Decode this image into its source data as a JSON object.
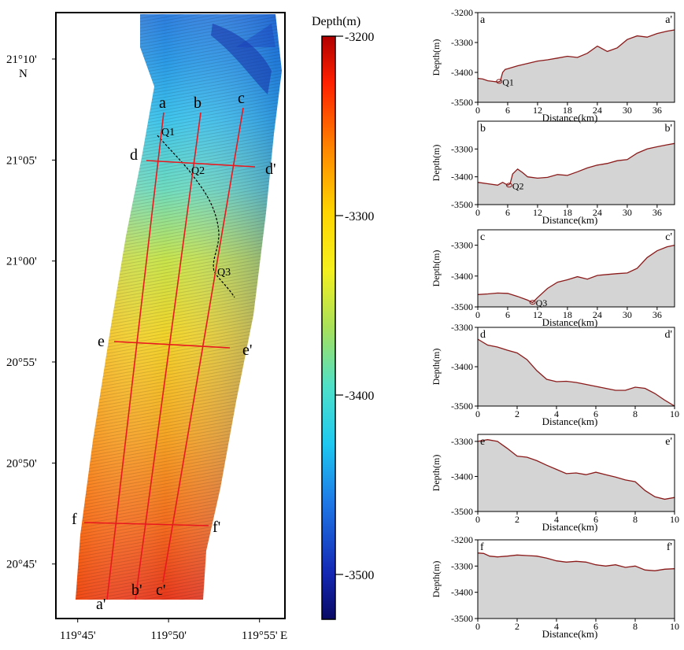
{
  "map": {
    "lat_ticks": [
      "21°10'",
      "21°05'",
      "21°00'",
      "20°55'",
      "20°50'",
      "20°45'"
    ],
    "lat_values": [
      21.1667,
      21.0833,
      21.0,
      20.9167,
      20.8333,
      20.75
    ],
    "lat_range": [
      20.705,
      21.205
    ],
    "lon_ticks": [
      "119°45'",
      "119°50'",
      "119°55'"
    ],
    "lon_values": [
      119.75,
      119.8333,
      119.9167
    ],
    "lon_range": [
      119.73,
      119.94
    ],
    "north_label": "N",
    "east_label": "E",
    "profile_lines": [
      {
        "start": "a",
        "end": "a'"
      },
      {
        "start": "b",
        "end": "b'"
      },
      {
        "start": "c",
        "end": "c'"
      },
      {
        "start": "d",
        "end": "d'"
      },
      {
        "start": "e",
        "end": "e'"
      },
      {
        "start": "f",
        "end": "f'"
      }
    ],
    "features": [
      "Q1",
      "Q2",
      "Q3"
    ],
    "colors": {
      "profile_line": "#e8191f",
      "feature_trace": "#000000"
    }
  },
  "colorbar": {
    "title": "Depth(m)",
    "ticks": [
      "-3200",
      "-3300",
      "-3400",
      "-3500"
    ],
    "tick_values": [
      -3200,
      -3300,
      -3400,
      -3500
    ],
    "range": [
      -3200,
      -3525
    ],
    "colors": [
      "#b00000",
      "#ff2000",
      "#ff8c00",
      "#ffd400",
      "#f5f01e",
      "#a8e05a",
      "#4fe0c8",
      "#1ec8f0",
      "#1e78e6",
      "#1428b4",
      "#0a0a64"
    ]
  },
  "chart_data": [
    {
      "type": "area",
      "start_label": "a",
      "end_label": "a'",
      "xlabel": "Distance(km)",
      "ylabel": "Depth(m)",
      "xlim": [
        0,
        39.5
      ],
      "ylim": [
        -3500,
        -3200
      ],
      "xticks": [
        0,
        6,
        12,
        18,
        24,
        30,
        36
      ],
      "yticks": [
        -3200,
        -3300,
        -3400,
        -3500
      ],
      "feature": {
        "label": "Q1",
        "x": 4.3,
        "y": -3430
      },
      "x": [
        0,
        1,
        2,
        3,
        4,
        4.5,
        5,
        5.5,
        6,
        8,
        10,
        12,
        14,
        16,
        18,
        20,
        22,
        24,
        26,
        28,
        30,
        32,
        34,
        36,
        38,
        39.5
      ],
      "y": [
        -3420,
        -3422,
        -3428,
        -3430,
        -3432,
        -3430,
        -3400,
        -3390,
        -3388,
        -3378,
        -3370,
        -3362,
        -3358,
        -3352,
        -3346,
        -3350,
        -3336,
        -3312,
        -3330,
        -3318,
        -3290,
        -3278,
        -3282,
        -3270,
        -3262,
        -3258
      ]
    },
    {
      "type": "area",
      "start_label": "b",
      "end_label": "b'",
      "xlabel": "Distance(km)",
      "ylabel": "Depth(m)",
      "xlim": [
        0,
        39.5
      ],
      "ylim": [
        -3500,
        -3200
      ],
      "xticks": [
        0,
        6,
        12,
        18,
        24,
        30,
        36
      ],
      "yticks": [
        -3300,
        -3400,
        -3500
      ],
      "feature": {
        "label": "Q2",
        "x": 6.3,
        "y": -3430
      },
      "x": [
        0,
        2,
        4,
        5,
        6,
        6.5,
        7,
        8,
        9,
        10,
        12,
        14,
        16,
        18,
        20,
        22,
        24,
        26,
        28,
        30,
        32,
        34,
        36,
        38,
        39.5
      ],
      "y": [
        -3420,
        -3425,
        -3430,
        -3420,
        -3430,
        -3425,
        -3390,
        -3372,
        -3385,
        -3400,
        -3405,
        -3402,
        -3392,
        -3395,
        -3382,
        -3368,
        -3358,
        -3352,
        -3342,
        -3338,
        -3315,
        -3300,
        -3292,
        -3285,
        -3280
      ]
    },
    {
      "type": "area",
      "start_label": "c",
      "end_label": "c'",
      "xlabel": "Distance(km)",
      "ylabel": "Depth(m)",
      "xlim": [
        0,
        39.5
      ],
      "ylim": [
        -3500,
        -3250
      ],
      "xticks": [
        0,
        6,
        12,
        18,
        24,
        30,
        36
      ],
      "yticks": [
        -3300,
        -3400,
        -3500
      ],
      "feature": {
        "label": "Q3",
        "x": 11,
        "y": -3485
      },
      "x": [
        0,
        2,
        4,
        6,
        8,
        10,
        11,
        12,
        14,
        16,
        18,
        20,
        22,
        24,
        26,
        28,
        30,
        32,
        34,
        36,
        38,
        39.5
      ],
      "y": [
        -3460,
        -3458,
        -3455,
        -3456,
        -3466,
        -3478,
        -3486,
        -3470,
        -3440,
        -3420,
        -3412,
        -3402,
        -3410,
        -3398,
        -3395,
        -3392,
        -3390,
        -3375,
        -3340,
        -3318,
        -3305,
        -3300
      ]
    },
    {
      "type": "area",
      "start_label": "d",
      "end_label": "d'",
      "xlabel": "Distance(km)",
      "ylabel": "Depth(m)",
      "xlim": [
        0,
        10
      ],
      "ylim": [
        -3500,
        -3300
      ],
      "xticks": [
        0,
        2,
        4,
        6,
        8,
        10
      ],
      "yticks": [
        -3300,
        -3400,
        -3500
      ],
      "x": [
        0,
        0.5,
        1,
        1.5,
        2,
        2.5,
        3,
        3.5,
        4,
        4.5,
        5,
        5.5,
        6,
        6.5,
        7,
        7.5,
        8,
        8.5,
        9,
        9.5,
        10
      ],
      "y": [
        -3330,
        -3345,
        -3350,
        -3358,
        -3365,
        -3382,
        -3410,
        -3432,
        -3438,
        -3437,
        -3440,
        -3445,
        -3450,
        -3455,
        -3460,
        -3460,
        -3452,
        -3455,
        -3468,
        -3485,
        -3500
      ]
    },
    {
      "type": "area",
      "start_label": "e",
      "end_label": "e'",
      "xlabel": "Distance(km)",
      "ylabel": "Depth(m)",
      "xlim": [
        0,
        10
      ],
      "ylim": [
        -3500,
        -3280
      ],
      "xticks": [
        0,
        2,
        4,
        6,
        8,
        10
      ],
      "yticks": [
        -3300,
        -3400,
        -3500
      ],
      "x": [
        0,
        0.5,
        1,
        1.5,
        2,
        2.5,
        3,
        3.5,
        4,
        4.5,
        5,
        5.5,
        6,
        6.5,
        7,
        7.5,
        8,
        8.5,
        9,
        9.5,
        10
      ],
      "y": [
        -3300,
        -3295,
        -3300,
        -3320,
        -3342,
        -3345,
        -3355,
        -3368,
        -3380,
        -3392,
        -3390,
        -3395,
        -3388,
        -3395,
        -3402,
        -3410,
        -3415,
        -3440,
        -3458,
        -3465,
        -3460
      ]
    },
    {
      "type": "area",
      "start_label": "f",
      "end_label": "f'",
      "xlabel": "Distance(km)",
      "ylabel": "Depth(m)",
      "xlim": [
        0,
        10
      ],
      "ylim": [
        -3500,
        -3200
      ],
      "xticks": [
        0,
        2,
        4,
        6,
        8,
        10
      ],
      "yticks": [
        -3200,
        -3300,
        -3400,
        -3500
      ],
      "x": [
        0,
        0.3,
        0.6,
        1,
        1.5,
        2,
        2.5,
        3,
        3.5,
        4,
        4.5,
        5,
        5.5,
        6,
        6.5,
        7,
        7.5,
        8,
        8.5,
        9,
        9.5,
        10
      ],
      "y": [
        -3250,
        -3252,
        -3262,
        -3265,
        -3262,
        -3258,
        -3260,
        -3262,
        -3270,
        -3280,
        -3285,
        -3282,
        -3285,
        -3295,
        -3300,
        -3295,
        -3305,
        -3300,
        -3315,
        -3318,
        -3312,
        -3310
      ]
    }
  ]
}
